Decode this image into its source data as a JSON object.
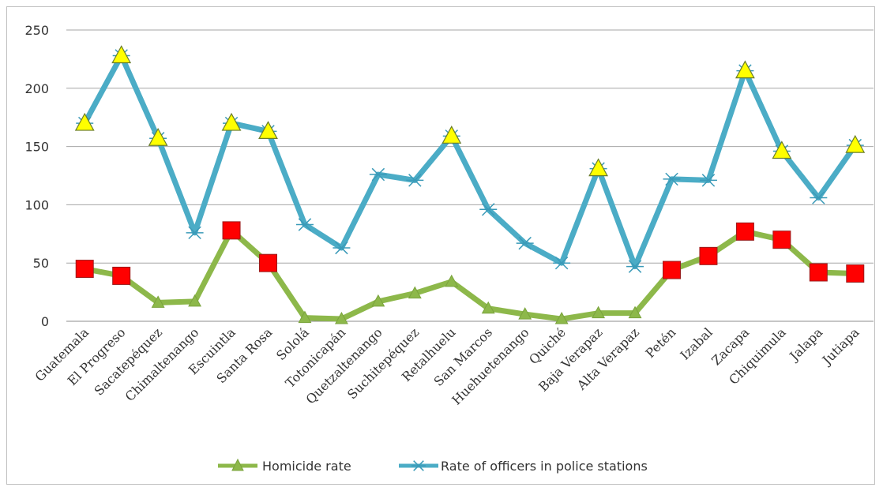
{
  "chart_data": {
    "type": "line",
    "title": "",
    "xlabel": "",
    "ylabel": "",
    "ylim": [
      0,
      250
    ],
    "yticks": [
      0,
      50,
      100,
      150,
      200,
      250
    ],
    "grid": "horizontal",
    "legend": "bottom",
    "categories": [
      "Guatemala",
      "El Progreso",
      "Sacatepéquez",
      "Chimaltenango",
      "Escuintla",
      "Santa Rosa",
      "Sololá",
      "Totonicapán",
      "Quetzaltenango",
      "Suchitepéquez",
      "Retalhuelu",
      "San Marcos",
      "Huehuetenango",
      "Quiché",
      "Baja Verapaz",
      "Alta Verapaz",
      "Petén",
      "Izabal",
      "Zacapa",
      "Chiquimula",
      "Jalapa",
      "Jutiapa"
    ],
    "series": [
      {
        "name": "Homicide rate",
        "color": "#8db84a",
        "marker": "triangle",
        "values": [
          45,
          39,
          16,
          17,
          78,
          50,
          3,
          2,
          17,
          24,
          34,
          11,
          6,
          2,
          7,
          7,
          44,
          56,
          77,
          70,
          42,
          41
        ]
      },
      {
        "name": "Rate of officers in police stations",
        "color": "#4bacc6",
        "marker": "star",
        "values": [
          170,
          228,
          157,
          76,
          170,
          163,
          83,
          63,
          126,
          121,
          159,
          96,
          67,
          50,
          131,
          47,
          122,
          121,
          215,
          146,
          106,
          151
        ]
      }
    ],
    "highlight_markers": {
      "yellow_triangle": {
        "color": "#ffff00",
        "points": [
          [
            0,
            170
          ],
          [
            1,
            228
          ],
          [
            2,
            157
          ],
          [
            4,
            170
          ],
          [
            5,
            163
          ],
          [
            10,
            159
          ],
          [
            14,
            131
          ],
          [
            18,
            215
          ],
          [
            19,
            146
          ],
          [
            21,
            151
          ]
        ]
      },
      "red_square": {
        "color": "#ff0000",
        "points": [
          [
            0,
            45
          ],
          [
            1,
            39
          ],
          [
            4,
            78
          ],
          [
            5,
            50
          ],
          [
            16,
            44
          ],
          [
            17,
            56
          ],
          [
            18,
            77
          ],
          [
            19,
            70
          ],
          [
            20,
            42
          ],
          [
            21,
            41
          ]
        ]
      }
    }
  }
}
